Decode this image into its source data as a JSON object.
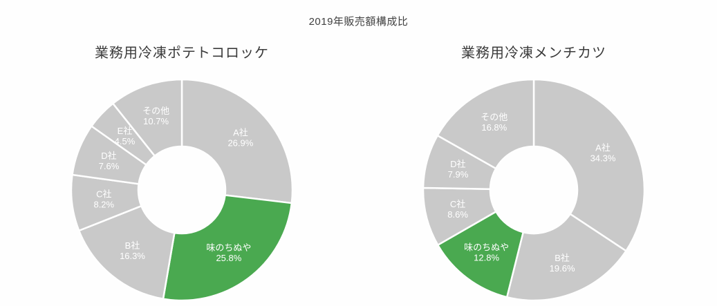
{
  "page": {
    "title": "2019年販売額構成比"
  },
  "colors": {
    "slice_default": "#c9c9c9",
    "slice_highlight": "#4aa950",
    "slice_gap": "#ffffff",
    "slice_label_text": "#ffffff",
    "title_text": "#3f3f3f",
    "chart_title_text": "#3a3a3a"
  },
  "chart_data": [
    {
      "type": "pie",
      "donut": true,
      "title": "業務用冷凍ポテトコロッケ",
      "start_angle_deg": 0,
      "direction": "clockwise",
      "categories": [
        "A社",
        "味のちぬや",
        "B社",
        "C社",
        "D社",
        "E社",
        "その他"
      ],
      "values": [
        26.9,
        25.8,
        16.3,
        8.2,
        7.6,
        4.5,
        10.7
      ],
      "unit": "%",
      "highlight_category": "味のちぬや",
      "legend": "none",
      "label_style": "category-and-percent-inside"
    },
    {
      "type": "pie",
      "donut": true,
      "title": "業務用冷凍メンチカツ",
      "start_angle_deg": 0,
      "direction": "clockwise",
      "categories": [
        "A社",
        "B社",
        "味のちぬや",
        "C社",
        "D社",
        "その他"
      ],
      "values": [
        34.3,
        19.6,
        12.8,
        8.6,
        7.9,
        16.8
      ],
      "unit": "%",
      "highlight_category": "味のちぬや",
      "legend": "none",
      "label_style": "category-and-percent-inside"
    }
  ]
}
